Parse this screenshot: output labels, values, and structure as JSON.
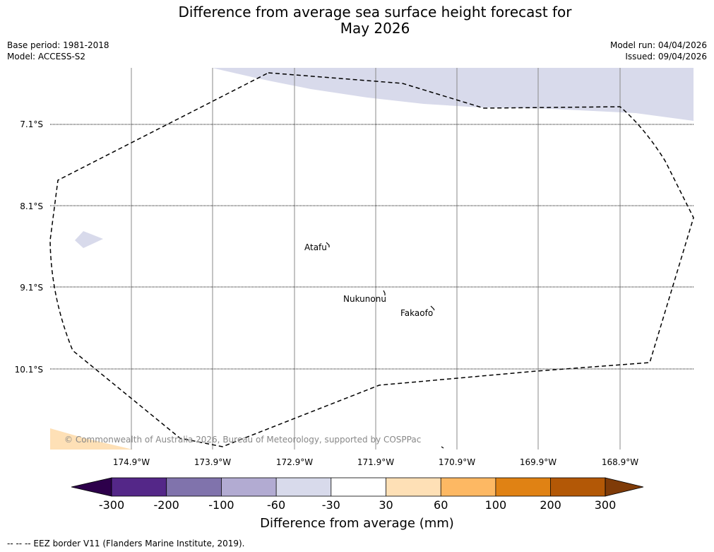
{
  "title": {
    "line1": "Difference from average sea surface height forecast for",
    "line2": "May 2026"
  },
  "meta": {
    "base_period": "Base period: 1981-2018",
    "model": "Model: ACCESS-S2",
    "model_run": "Model run: 04/04/2026",
    "issued": "Issued: 09/04/2026"
  },
  "map": {
    "lat_labels": [
      "7.1°S",
      "8.1°S",
      "9.1°S",
      "10.1°S"
    ],
    "lon_labels": [
      "174.9°W",
      "173.9°W",
      "172.9°W",
      "171.9°W",
      "170.9°W",
      "169.9°W",
      "168.9°W"
    ],
    "places": [
      "Atafu",
      "Nukunonu",
      "Fakaofo"
    ],
    "copyright": "© Commonwealth of Australia 2026, Bureau of Meteorology, supported by COSPPac"
  },
  "colorbar": {
    "ticks": [
      "-300",
      "-200",
      "-100",
      "-60",
      "-30",
      "30",
      "60",
      "100",
      "200",
      "300"
    ],
    "colors": [
      "#2d004b",
      "#542788",
      "#8073ac",
      "#b2abd2",
      "#d8daeb",
      "#ffffff",
      "#fee0b6",
      "#fdb863",
      "#e08214",
      "#b35806",
      "#7f3b08"
    ],
    "label": "Difference from average (mm)"
  },
  "footer": "--  --  -- EEZ border V11 (Flanders Marine Institute, 2019)."
}
